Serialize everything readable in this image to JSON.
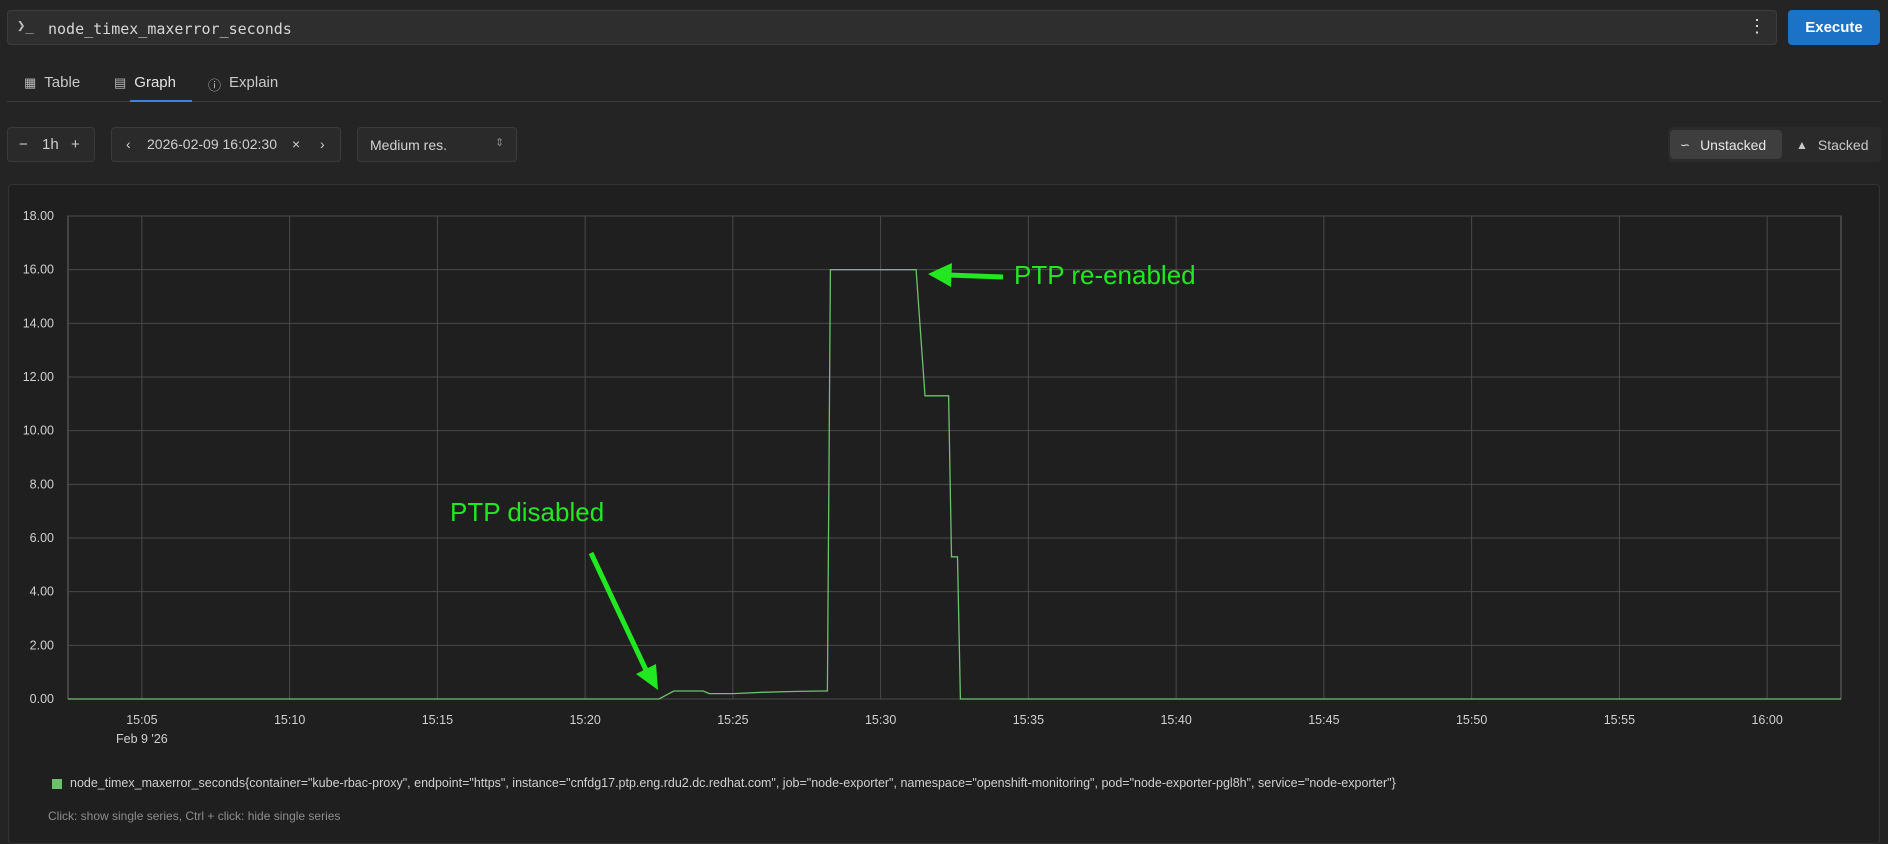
{
  "query": {
    "prompt_symbol": "❯_",
    "expression": "node_timex_maxerror_seconds",
    "execute_label": "Execute"
  },
  "tabs": [
    {
      "label": "Table",
      "icon": "table-icon"
    },
    {
      "label": "Graph",
      "icon": "graph-icon",
      "active": true
    },
    {
      "label": "Explain",
      "icon": "info-icon"
    }
  ],
  "toolbar": {
    "range": "1h",
    "end_time": "2026-02-09 16:02:30",
    "resolution": "Medium res.",
    "unstacked_label": "Unstacked",
    "stacked_label": "Stacked",
    "mode": "unstacked"
  },
  "chart_data": {
    "type": "line",
    "ylim": [
      0,
      18
    ],
    "yticks": [
      "0.00",
      "2.00",
      "4.00",
      "6.00",
      "8.00",
      "10.00",
      "12.00",
      "14.00",
      "16.00",
      "18.00"
    ],
    "xlim_minutes": [
      "15:02.5",
      "16:02.5"
    ],
    "xticks": [
      "15:05",
      "15:10",
      "15:15",
      "15:20",
      "15:25",
      "15:30",
      "15:35",
      "15:40",
      "15:45",
      "15:50",
      "15:55",
      "16:00"
    ],
    "x_date_label": "Feb 9 '26",
    "grid": true,
    "series": [
      {
        "name": "node_timex_maxerror_seconds{container=\"kube-rbac-proxy\", endpoint=\"https\", instance=\"cnfdg17.ptp.eng.rdu2.dc.redhat.com\", job=\"node-exporter\", namespace=\"openshift-monitoring\", pod=\"node-exporter-pgl8h\", service=\"node-exporter\"}",
        "color": "#6cc06c",
        "x": [
          "15:02.5",
          "15:22.5",
          "15:23",
          "15:24",
          "15:24.2",
          "15:25",
          "15:26",
          "15:27",
          "15:28",
          "15:28.2",
          "15:28.3",
          "15:29",
          "15:30",
          "15:31",
          "15:31.2",
          "15:31.5",
          "15:32",
          "15:32.3",
          "15:32.4",
          "15:32.6",
          "15:32.7",
          "16:02.5"
        ],
        "y": [
          0,
          0,
          0.3,
          0.3,
          0.2,
          0.2,
          0.25,
          0.28,
          0.3,
          0.3,
          16,
          16,
          16,
          16,
          16,
          11.3,
          11.3,
          11.3,
          5.3,
          5.3,
          0,
          0
        ]
      }
    ],
    "annotations": [
      {
        "text": "PTP disabled",
        "color": "#22e822"
      },
      {
        "text": "PTP re-enabled",
        "color": "#22e822"
      }
    ]
  },
  "legend": {
    "hint": "Click: show single series, Ctrl + click: hide single series"
  },
  "colors": {
    "accent": "#1c72c5",
    "tab_underline": "#3b82e6",
    "series": "#6cc06c",
    "annotation": "#22e822"
  }
}
